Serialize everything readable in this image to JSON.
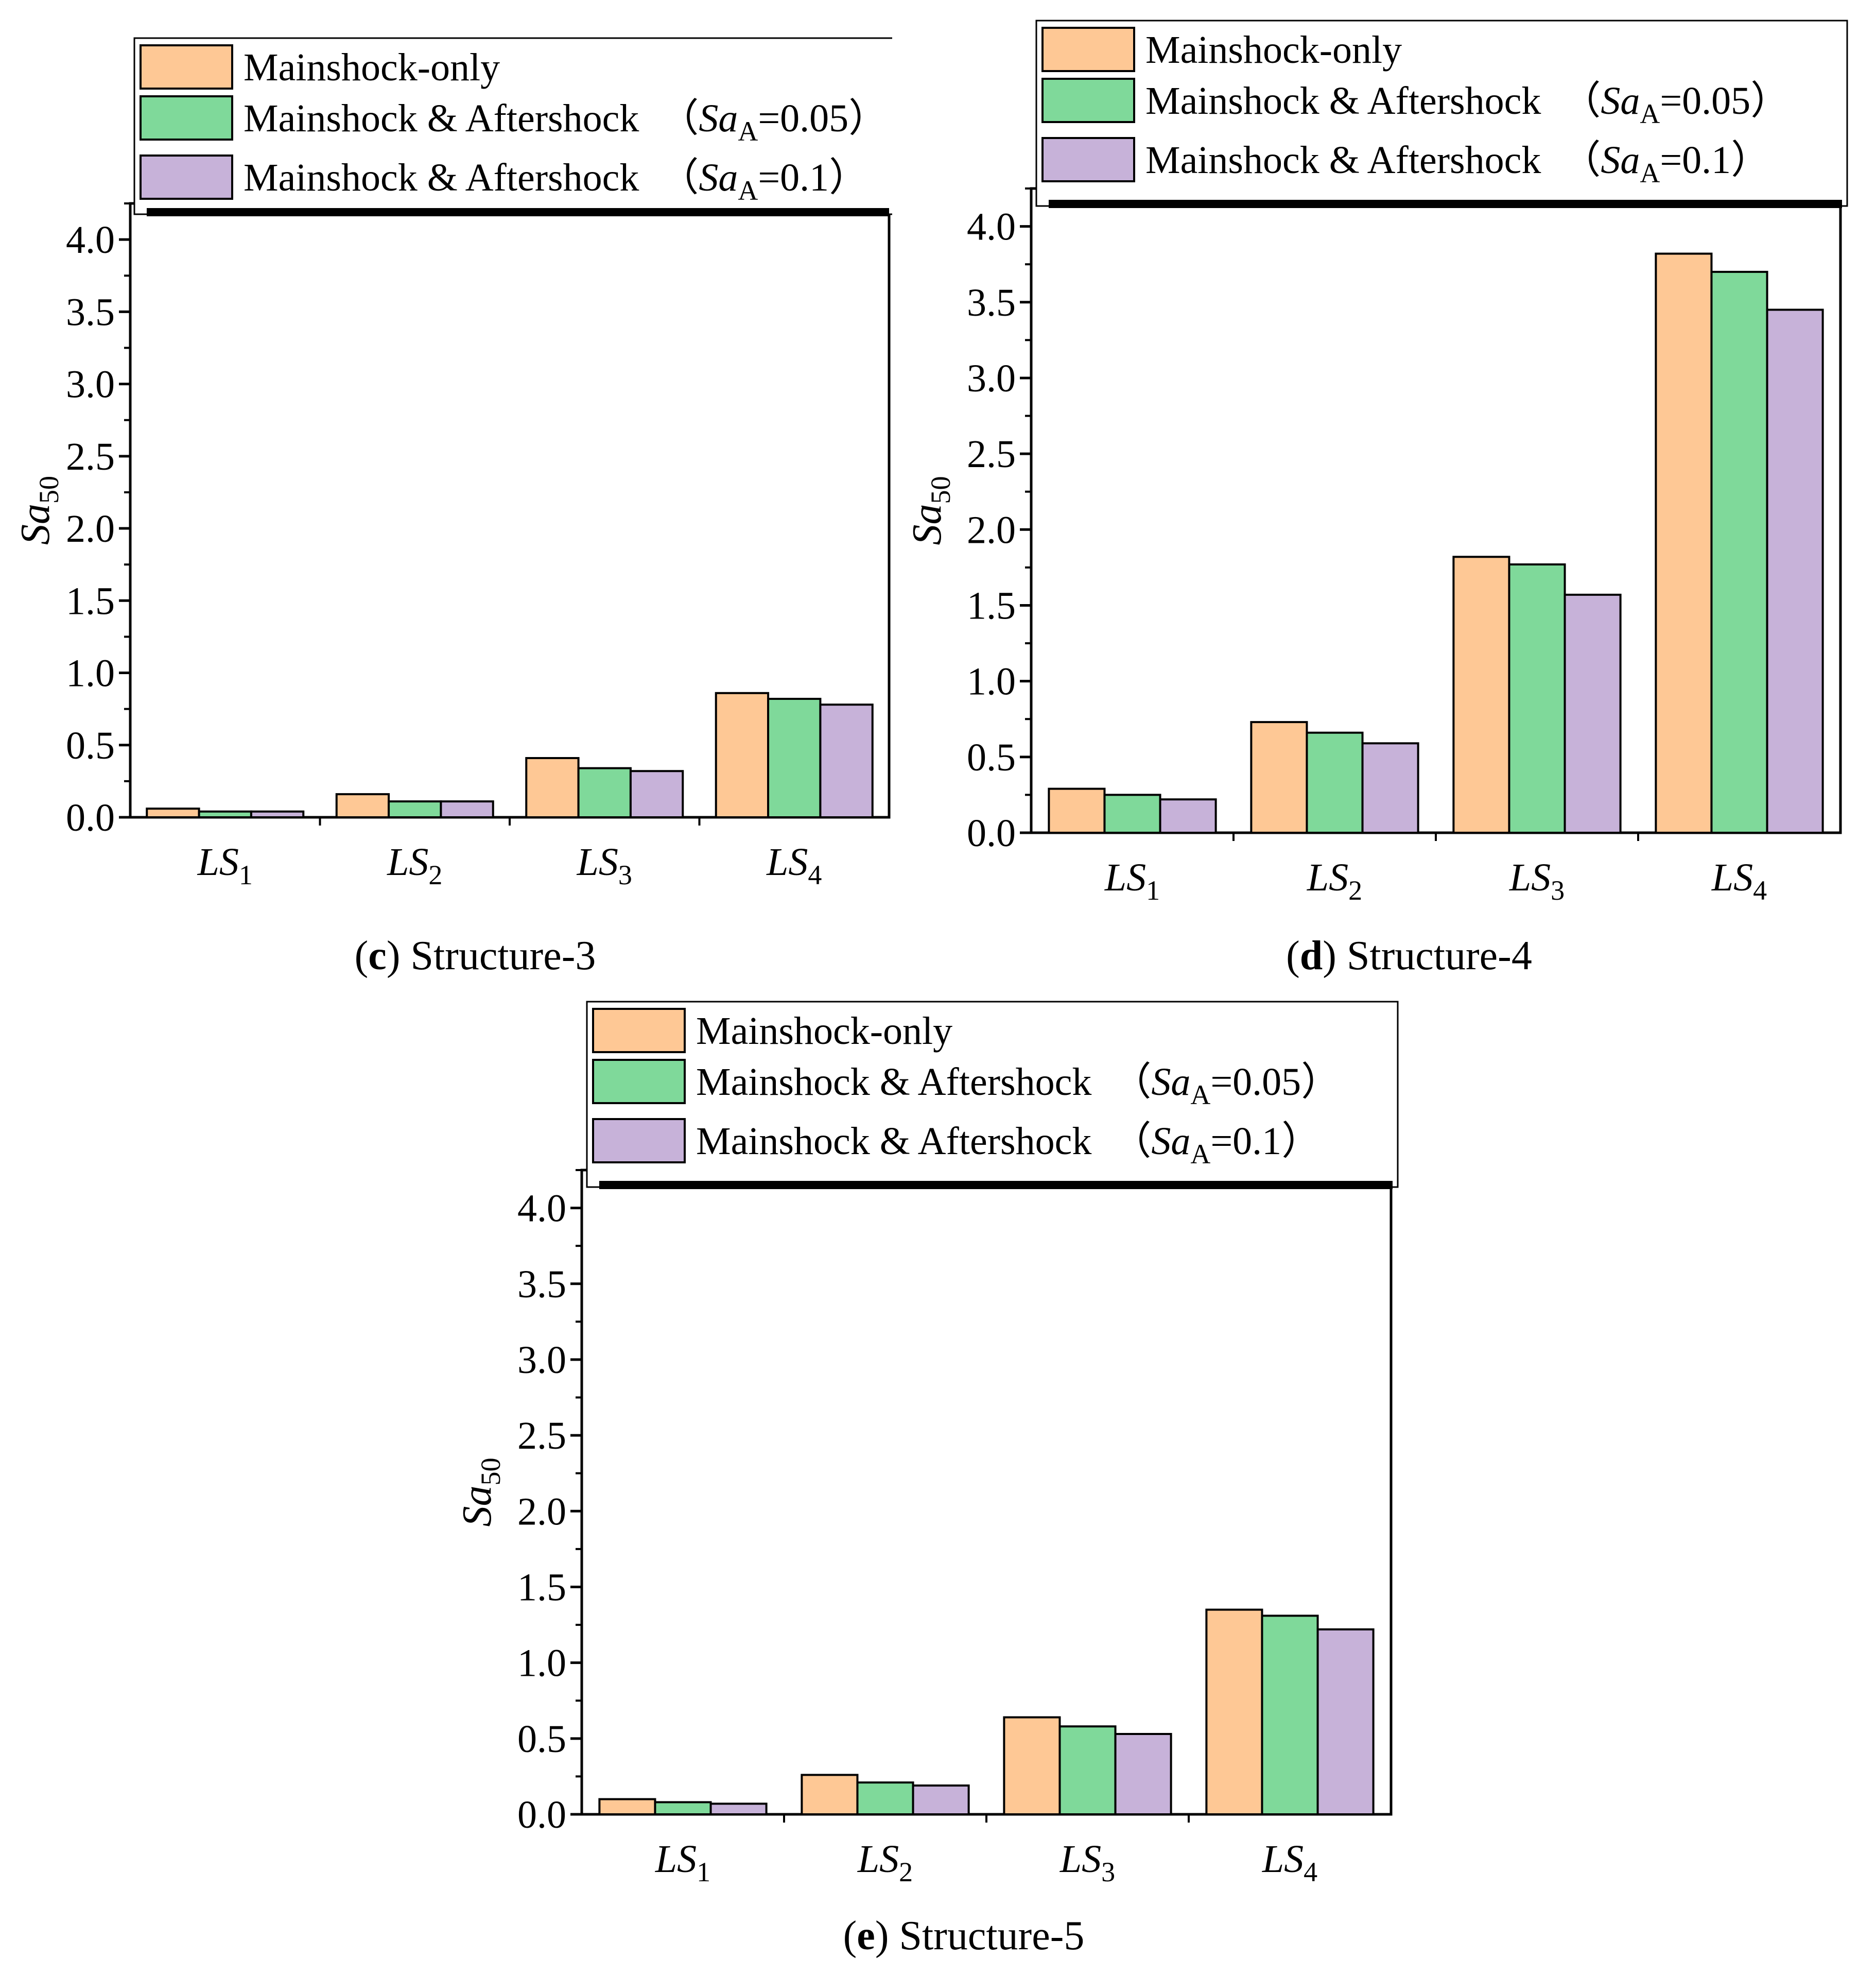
{
  "legend": {
    "items": [
      {
        "label": "Mainshock-only",
        "color": "#FEC895"
      },
      {
        "label": "Mainshock & Aftershock",
        "suffix_open": "（",
        "param": "Sa",
        "param_sub": "A",
        "value": "=0.05",
        "suffix_close": "）",
        "color": "#7FD99A"
      },
      {
        "label": "Mainshock & Aftershock",
        "suffix_open": "（",
        "param": "Sa",
        "param_sub": "A",
        "value": "=0.1",
        "suffix_close": "）",
        "color": "#C7B2D9"
      }
    ]
  },
  "ylabel": {
    "main": "Sa",
    "sub": "50"
  },
  "chart_data": [
    {
      "type": "bar",
      "caption_letter": "c",
      "caption_text": "Structure-3",
      "categories": [
        {
          "main": "LS",
          "sub": "1"
        },
        {
          "main": "LS",
          "sub": "2"
        },
        {
          "main": "LS",
          "sub": "3"
        },
        {
          "main": "LS",
          "sub": "4"
        }
      ],
      "yticks": [
        "0.0",
        "0.5",
        "1.0",
        "1.5",
        "2.0",
        "2.5",
        "3.0",
        "3.5",
        "4.0"
      ],
      "ylim": [
        0,
        4.25
      ],
      "series": [
        {
          "name": "Mainshock-only",
          "values": [
            0.06,
            0.16,
            0.41,
            0.86
          ]
        },
        {
          "name": "Mainshock & Aftershock (SaA=0.05)",
          "values": [
            0.04,
            0.11,
            0.34,
            0.82
          ]
        },
        {
          "name": "Mainshock & Aftershock (SaA=0.1)",
          "values": [
            0.04,
            0.11,
            0.32,
            0.78
          ]
        }
      ]
    },
    {
      "type": "bar",
      "caption_letter": "d",
      "caption_text": "Structure-4",
      "categories": [
        {
          "main": "LS",
          "sub": "1"
        },
        {
          "main": "LS",
          "sub": "2"
        },
        {
          "main": "LS",
          "sub": "3"
        },
        {
          "main": "LS",
          "sub": "4"
        }
      ],
      "yticks": [
        "0.0",
        "0.5",
        "1.0",
        "1.5",
        "2.0",
        "2.5",
        "3.0",
        "3.5",
        "4.0"
      ],
      "ylim": [
        0,
        4.25
      ],
      "series": [
        {
          "name": "Mainshock-only",
          "values": [
            0.29,
            0.73,
            1.82,
            3.82
          ]
        },
        {
          "name": "Mainshock & Aftershock (SaA=0.05)",
          "values": [
            0.25,
            0.66,
            1.77,
            3.7
          ]
        },
        {
          "name": "Mainshock & Aftershock (SaA=0.1)",
          "values": [
            0.22,
            0.59,
            1.57,
            3.45
          ]
        }
      ]
    },
    {
      "type": "bar",
      "caption_letter": "e",
      "caption_text": "Structure-5",
      "categories": [
        {
          "main": "LS",
          "sub": "1"
        },
        {
          "main": "LS",
          "sub": "2"
        },
        {
          "main": "LS",
          "sub": "3"
        },
        {
          "main": "LS",
          "sub": "4"
        }
      ],
      "yticks": [
        "0.0",
        "0.5",
        "1.0",
        "1.5",
        "2.0",
        "2.5",
        "3.0",
        "3.5",
        "4.0"
      ],
      "ylim": [
        0,
        4.25
      ],
      "series": [
        {
          "name": "Mainshock-only",
          "values": [
            0.1,
            0.26,
            0.64,
            1.35
          ]
        },
        {
          "name": "Mainshock & Aftershock (SaA=0.05)",
          "values": [
            0.08,
            0.21,
            0.58,
            1.31
          ]
        },
        {
          "name": "Mainshock & Aftershock (SaA=0.1)",
          "values": [
            0.07,
            0.19,
            0.53,
            1.22
          ]
        }
      ]
    }
  ]
}
